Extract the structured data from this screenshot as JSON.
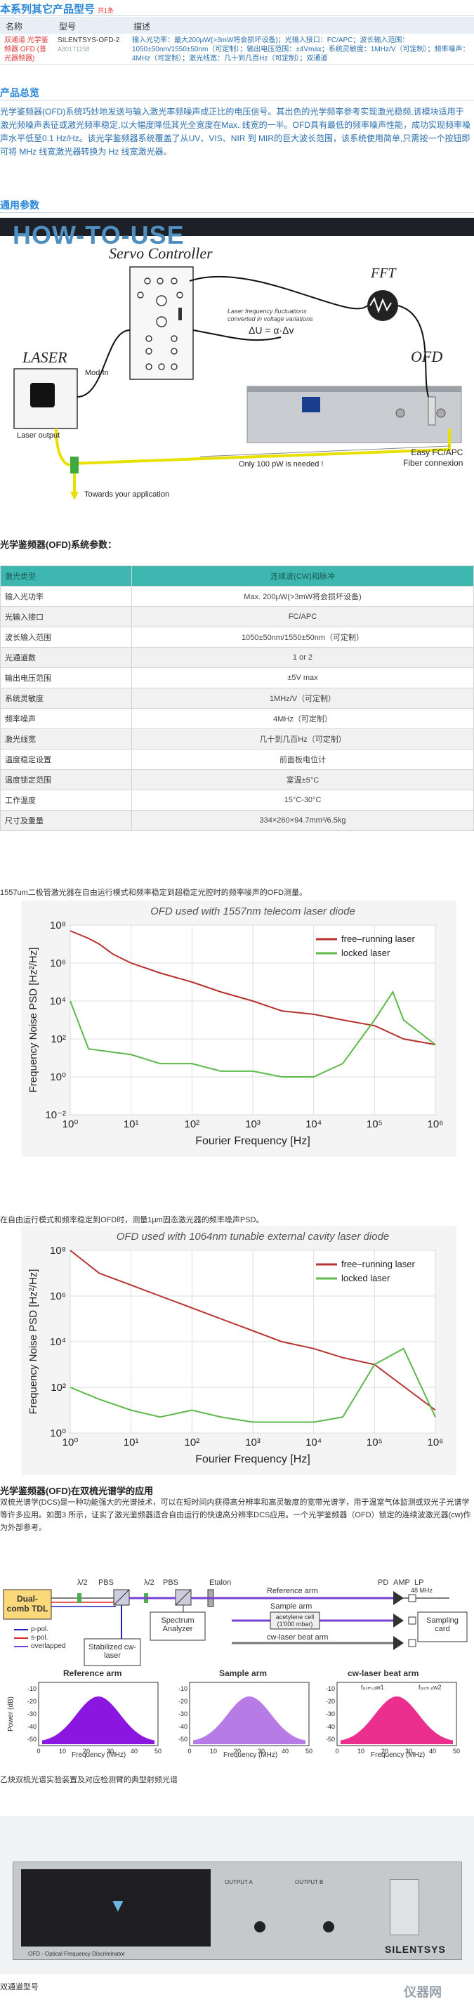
{
  "related": {
    "section_title": "本系列其它产品型号",
    "section_tag": "共1条",
    "headers": [
      "名称",
      "型号",
      "描述"
    ],
    "row": {
      "name": "双通道 光学鉴频器 OFD (普光器频器)",
      "model": "SILENTSYS-OFD-2",
      "model_sub": "A80171158",
      "desc": "输入光功率：最大200μW(>3mW将会损坏设备)；光输入接口：FC/APC；波长输入范围：1050±50nm/1550±50nm（可定制）；输出电压范围：±4Vmax；系统灵敏度：1MHz/V（可定制）；频率噪声：4MHz（可定制）；激光线宽：几十到几百Hz（可定制）；双通道"
    }
  },
  "overview": {
    "title": "产品总览",
    "text": "光学鉴频器(OFD)系统巧妙地发送与输入激光率频噪声成正比的电压信号。其出色的光学频率参考实现激光稳频,该模块适用于激光频噪声表征或激光频率稳定,以大幅度降低其光全宽度在Max. 线宽的一半。OFD具有最低的频率噪声性能，成功实现频率噪声水平低至0.1 Hz/Hz。该光学鉴频器系统覆盖了从UV、VIS、NIR 到 MIR的巨大波长范围，该系统使用简单,只需按一个按钮即可将 MHz 线宽激光器转换为 Hz 线宽激光器。"
  },
  "general": {
    "title": "通用参数"
  },
  "howto": {
    "title": "HOW-TO-USE",
    "servo": "Servo Controller",
    "fft": "FFT",
    "laser": "LASER",
    "mod_in": "Mod In",
    "laser_output": "Laser output",
    "ofd": "OFD",
    "fluct_line1": "Laser frequency fluctuations",
    "fluct_line2": "converted in voltage variations",
    "formula": "ΔU = α·Δv",
    "only": "Only 100 pW is needed !",
    "towards": "Towards your application",
    "easy1": "Easy FC/APC",
    "easy2": "Fiber connexion"
  },
  "params": {
    "title": "光学鉴频器(OFD)系统参数：",
    "header": [
      "激光类型",
      "连续波(CW)和脉冲"
    ],
    "rows": [
      [
        "输入光功率",
        "Max. 200μW(>3mW将会损坏设备)"
      ],
      [
        "光输入接口",
        "FC/APC"
      ],
      [
        "波长输入范围",
        "1050±50nm/1550±50nm（可定制）"
      ],
      [
        "光通道数",
        "1 or 2"
      ],
      [
        "输出电压范围",
        "±5V max"
      ],
      [
        "系统灵敏度",
        "1MHz/V（可定制）"
      ],
      [
        "频率噪声",
        "4MHz（可定制）"
      ],
      [
        "激光线宽",
        "几十到几百Hz（可定制）"
      ],
      [
        "温度稳定设置",
        "前面板电位计"
      ],
      [
        "温度锁定范围",
        "室温±5°C"
      ],
      [
        "工作温度",
        "15°C-30°C"
      ],
      [
        "尺寸及重量",
        "334×260×94.7mm³/6.5kg"
      ]
    ]
  },
  "chart1_caption": "1557um二极管激光器在自由运行模式和频率稳定到超稳定光腔时的频率噪声的OFD测量。",
  "chart2_caption": "在自由运行模式和频率稳定到OFD时，测量1μm固态激光器的频率噪声PSD。",
  "chart_data": [
    {
      "type": "line",
      "title": "OFD used with 1557nm telecom laser diode",
      "xlabel": "Fourier Frequency [Hz]",
      "ylabel": "Frequency Noise PSD [Hz²/Hz]",
      "xscale": "log",
      "yscale": "log",
      "xlim": [
        1,
        1000000
      ],
      "ylim": [
        0.01,
        100000000
      ],
      "xticks": [
        "10⁰",
        "10¹",
        "10²",
        "10³",
        "10⁴",
        "10⁵",
        "10⁶"
      ],
      "yticks": [
        "10⁻²",
        "10⁰",
        "10²",
        "10⁴",
        "10⁶",
        "10⁸"
      ],
      "legend": "top-right",
      "series": [
        {
          "name": "free–running laser",
          "color": "#b5322e",
          "x": [
            1,
            2,
            3,
            5,
            10,
            30,
            100,
            300,
            1000,
            3000,
            10000,
            30000,
            100000,
            300000,
            1000000
          ],
          "y": [
            50000000,
            20000000,
            10000000,
            3000000,
            1000000,
            300000,
            100000,
            30000,
            10000,
            3000,
            2000,
            1000,
            500,
            100,
            50
          ]
        },
        {
          "name": "locked laser",
          "color": "#5db94a",
          "x": [
            1,
            2,
            5,
            10,
            30,
            100,
            300,
            1000,
            3000,
            10000,
            30000,
            100000,
            200000,
            300000,
            1000000
          ],
          "y": [
            10000,
            30,
            20,
            15,
            5,
            5,
            2,
            2,
            1,
            1,
            5,
            1000,
            30000,
            1000,
            50
          ]
        }
      ]
    },
    {
      "type": "line",
      "title": "OFD used with 1064nm tunable external cavity laser diode",
      "xlabel": "Fourier Frequency [Hz]",
      "ylabel": "Frequency Noise PSD [Hz²/Hz]",
      "xscale": "log",
      "yscale": "log",
      "xlim": [
        1,
        1000000
      ],
      "ylim": [
        1,
        100000000
      ],
      "xticks": [
        "10⁰",
        "10¹",
        "10²",
        "10³",
        "10⁴",
        "10⁵",
        "10⁶"
      ],
      "yticks": [
        "10⁰",
        "10²",
        "10⁴",
        "10⁶",
        "10⁸"
      ],
      "legend": "top-right",
      "series": [
        {
          "name": "free–running laser",
          "color": "#b5322e",
          "x": [
            1,
            3,
            10,
            30,
            100,
            300,
            1000,
            3000,
            10000,
            30000,
            100000,
            1000000
          ],
          "y": [
            100000000,
            10000000,
            3000000,
            1000000,
            300000,
            100000,
            30000,
            10000,
            5000,
            2000,
            1000,
            10
          ]
        },
        {
          "name": "locked laser",
          "color": "#5db94a",
          "x": [
            1,
            3,
            10,
            30,
            100,
            300,
            1000,
            3000,
            10000,
            30000,
            100000,
            300000,
            1000000
          ],
          "y": [
            100,
            30,
            10,
            5,
            10,
            5,
            3,
            3,
            3,
            5,
            1000,
            5000,
            5
          ]
        }
      ]
    }
  ],
  "dcs": {
    "title": "光学鉴频器(OFD)在双梳光谱学的应用",
    "text": "双梳光谱学(DCS)是一种功能强大的光谱技术，可以在短时间内获得高分辨率和高灵敏度的宽带光谱学，用于温室气体监测或双光子光谱学等许多应用。如图3 所示，证实了激光鉴频器适合自由运行的快速高分辨率DCS应用。一个光学鉴频器（OFD）锁定的连续波激光器(cw)作为外部参考。",
    "labels": {
      "tdl": "Dual-comb TDL",
      "lam1": "λ/2",
      "pbs1": "PBS",
      "lam2": "λ/2",
      "pbs2": "PBS",
      "etalon": "Etalon",
      "ref_arm": "Reference arm",
      "sample_arm": "Sample arm",
      "acet": "acetylene cell (1'000 mbar)",
      "cw_beat": "cw-laser beat arm",
      "pd": "PD",
      "amp": "AMP",
      "lp": "LP",
      "lp_val": "48 MHz",
      "sampling": "Sampling card",
      "spectrum": "Spectrum Analyzer",
      "stab": "Stabilized cw-laser",
      "ppol": "p-pol.",
      "spol": "s-pol.",
      "over": "overlapped"
    },
    "spectra": [
      "Reference arm",
      "Sample arm",
      "cw-laser beat arm"
    ],
    "spectra_y": "Power (dB)",
    "spectra_x": "Frequency (MHz)",
    "spectra_yticks": [
      "-10",
      "-20",
      "-30",
      "-40",
      "-50"
    ],
    "spectra_xticks": [
      "0",
      "10",
      "20",
      "30",
      "40",
      "50"
    ],
    "beat_labels": [
      "f₀ₛₘ.ₒw1",
      "f₀ₛₘ.ₒw2"
    ],
    "caption": "乙炔双梳光谱实验装置及对应检测臂的典型射频光谱"
  },
  "photo": {
    "brand": "SILENTSYS",
    "label": "OFD - Optical Frequency Discriminator",
    "out_a": "OUTPUT A",
    "out_b": "OUTPUT B"
  },
  "footer": {
    "text": "双通道型号",
    "watermark": "仪器网"
  }
}
